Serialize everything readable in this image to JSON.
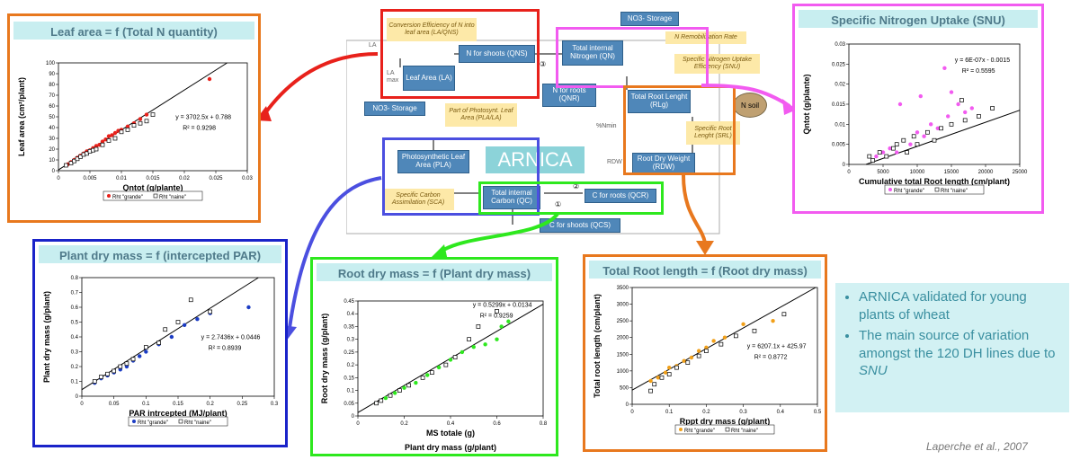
{
  "colors": {
    "red": "#e8211b",
    "orange": "#e8781e",
    "magenta": "#f25bf0",
    "blue": "#4b4fe0",
    "navy": "#1a23c9",
    "green": "#2ee81e",
    "dblue": "#1b3cc4",
    "orange_pt": "#f1a01a"
  },
  "diagram": {
    "la": "LA",
    "la_max": "LA max",
    "leaf_area": "Leaf Area (LA)",
    "n_shoots": "N for shoots (QNS)",
    "conv_eff": "Conversion Efficiency of N into leaf area (LA/QNS)",
    "total_n": "Total internal Nitrogen (QN)",
    "n_remob": "N Remobilization Rate",
    "no3_storage_top": "NO3- Storage",
    "no3_storage_left": "NO3- Storage",
    "spec_n_uptake": "Specific Nitrogen Uptake Efficiency (SNU)",
    "n_roots": "N for roots (QNR)",
    "total_root_len": "Total Root Lenght (RLg)",
    "n_soil": "N soil",
    "part_photo": "Part of Photosynt. Leaf Area (PLA/LA)",
    "pct_nmin": "%Nmin",
    "spec_root_len": "Specific Root Lenght (SRL)",
    "photo_leaf": "Photosynthetic Leaf Area (PLA)",
    "arnica": "ARNICA",
    "rdw": "RDW",
    "root_dry_weight": "Root Dry Weight (RDW)",
    "spec_carbon": "Specific Carbon Assimilation (SCA)",
    "total_carbon": "Total internal Carbon (QC)",
    "c_roots": "C for roots (QCR)",
    "c_shoots": "C for shoots (QCS)",
    "num1": "①",
    "num2": "②",
    "num_alt": "③"
  },
  "bullets": [
    "ARNICA validated for young plants of wheat",
    "The main source of variation amongst the 120 DH lines due to SNU"
  ],
  "bullet2_pre": "The main source of variation amongst the 120 DH lines due to ",
  "bullet2_em": "SNU",
  "bullet1": "ARNICA validated for young plants of wheat",
  "citation": "Laperche et al., 2007",
  "legend_grande": "Rht \"grande\"",
  "legend_naine": "Rht \"naine\"",
  "chart_data": [
    {
      "id": "leaf",
      "type": "scatter",
      "title": "Leaf area = f (Total N quantity)",
      "xlabel": "Qntot (g/plante)",
      "ylabel": "Leaf area (cm²/plant)",
      "xlim": [
        0,
        0.03
      ],
      "ylim": [
        0,
        100
      ],
      "xticks": [
        "0",
        "0.005",
        "0.01",
        "0.015",
        "0.02",
        "0.025",
        "0.03"
      ],
      "yticks": [
        "0",
        "10",
        "20",
        "30",
        "40",
        "50",
        "60",
        "70",
        "80",
        "90",
        "100"
      ],
      "equation": "y = 3702.5x + 0.788",
      "r2": "R² = 0.9298",
      "slope": 3702.5,
      "intercept": 0.788,
      "series": [
        {
          "name": "Rht \"grande\"",
          "marker": "filled",
          "color": "#e8211b",
          "x": [
            0.0015,
            0.002,
            0.0025,
            0.003,
            0.0035,
            0.004,
            0.0045,
            0.005,
            0.0055,
            0.006,
            0.0065,
            0.007,
            0.0075,
            0.008,
            0.0085,
            0.009,
            0.0095,
            0.01,
            0.011,
            0.012,
            0.013,
            0.014,
            0.024
          ],
          "y": [
            6,
            8,
            10,
            12,
            14,
            16,
            18,
            19,
            21,
            23,
            24,
            27,
            29,
            32,
            33,
            35,
            37,
            38,
            41,
            44,
            48,
            52,
            85
          ]
        },
        {
          "name": "Rht \"naine\"",
          "marker": "open",
          "color": "#000000",
          "x": [
            0.0012,
            0.002,
            0.0025,
            0.003,
            0.0035,
            0.004,
            0.0045,
            0.005,
            0.0055,
            0.006,
            0.007,
            0.008,
            0.009,
            0.01,
            0.011,
            0.012,
            0.013,
            0.014,
            0.015
          ],
          "y": [
            5,
            7,
            9,
            11,
            13,
            15,
            16,
            18,
            19,
            20,
            24,
            28,
            30,
            36,
            38,
            42,
            44,
            46,
            52
          ]
        }
      ]
    },
    {
      "id": "snu",
      "type": "scatter",
      "title": "Specific Nitrogen Uptake (SNU)",
      "xlabel": "Cumulative total Root length (cm/plant)",
      "ylabel": "Qntot (g/plante)",
      "xlim": [
        0,
        25000
      ],
      "ylim": [
        0,
        0.03
      ],
      "xticks": [
        "0",
        "5000",
        "10000",
        "15000",
        "20000",
        "25000"
      ],
      "yticks": [
        "0",
        "0.005",
        "0.01",
        "0.015",
        "0.02",
        "0.025",
        "0.03"
      ],
      "equation": "y = 6E-07x - 0.0015",
      "r2": "R² = 0.5595",
      "slope": 6e-07,
      "intercept": -0.0015,
      "series": [
        {
          "name": "Rht \"grande\"",
          "marker": "filled",
          "color": "#f25bf0",
          "x": [
            4000,
            5000,
            6000,
            7000,
            8000,
            9000,
            10000,
            11000,
            12000,
            13000,
            14000,
            14500,
            15000,
            16000,
            17000,
            18000,
            7500,
            10500
          ],
          "y": [
            0.002,
            0.003,
            0.004,
            0.003,
            0.006,
            0.005,
            0.008,
            0.007,
            0.01,
            0.009,
            0.024,
            0.012,
            0.018,
            0.015,
            0.013,
            0.014,
            0.015,
            0.017
          ]
        },
        {
          "name": "Rht \"naine\"",
          "marker": "open",
          "color": "#000000",
          "x": [
            3000,
            3500,
            4500,
            5500,
            6500,
            7000,
            8000,
            8500,
            9500,
            10000,
            11500,
            12500,
            13500,
            15000,
            16500,
            17000,
            19000,
            21000
          ],
          "y": [
            0.002,
            0.001,
            0.003,
            0.002,
            0.004,
            0.005,
            0.006,
            0.003,
            0.007,
            0.005,
            0.008,
            0.006,
            0.009,
            0.01,
            0.016,
            0.011,
            0.012,
            0.014
          ]
        }
      ]
    },
    {
      "id": "pdm",
      "type": "scatter",
      "title": "Plant dry mass = f (intercepted PAR)",
      "xlabel": "PAR intrcepted (MJ/plant)",
      "ylabel": "Plant dry mass (g/plant)",
      "xlim": [
        0,
        0.3
      ],
      "ylim": [
        0,
        0.8
      ],
      "xticks": [
        "0",
        "0.05",
        "0.1",
        "0.15",
        "0.2",
        "0.25",
        "0.3"
      ],
      "yticks": [
        "0",
        "0.1",
        "0.2",
        "0.3",
        "0.4",
        "0.5",
        "0.6",
        "0.7",
        "0.8"
      ],
      "equation": "y = 2.7436x + 0.0446",
      "r2": "R² = 0.8939",
      "slope": 2.7436,
      "intercept": 0.0446,
      "series": [
        {
          "name": "Rht \"grande\"",
          "marker": "filled",
          "color": "#1b3cc4",
          "x": [
            0.02,
            0.03,
            0.04,
            0.05,
            0.06,
            0.07,
            0.08,
            0.09,
            0.1,
            0.12,
            0.14,
            0.16,
            0.18,
            0.2,
            0.26
          ],
          "y": [
            0.09,
            0.12,
            0.14,
            0.16,
            0.18,
            0.2,
            0.24,
            0.27,
            0.3,
            0.35,
            0.4,
            0.48,
            0.52,
            0.56,
            0.6
          ]
        },
        {
          "name": "Rht \"naine\"",
          "marker": "open",
          "color": "#000000",
          "x": [
            0.02,
            0.03,
            0.04,
            0.05,
            0.06,
            0.07,
            0.08,
            0.1,
            0.12,
            0.13,
            0.15,
            0.17,
            0.2
          ],
          "y": [
            0.1,
            0.13,
            0.15,
            0.17,
            0.2,
            0.22,
            0.25,
            0.33,
            0.36,
            0.45,
            0.5,
            0.65,
            0.57
          ]
        }
      ]
    },
    {
      "id": "rdm",
      "type": "scatter",
      "title": "Root dry mass = f (Plant dry mass)",
      "xlabel": "MS totale (g)",
      "ylabel": "Root dry mass (g/plant)",
      "caption": "Plant dry mass (g/plant)",
      "xlim": [
        0,
        0.8
      ],
      "ylim": [
        0,
        0.45
      ],
      "xticks": [
        "0",
        "0.2",
        "0.4",
        "0.6",
        "0.8"
      ],
      "yticks": [
        "0",
        "0.05",
        "0.1",
        "0.15",
        "0.2",
        "0.25",
        "0.3",
        "0.35",
        "0.4",
        "0.45"
      ],
      "equation": "y = 0.5299x + 0.0134",
      "r2": "R² = 0.9259",
      "slope": 0.5299,
      "intercept": 0.0134,
      "series": [
        {
          "name": "Rht \"grande\"",
          "marker": "filled",
          "color": "#2ee81e",
          "x": [
            0.08,
            0.12,
            0.16,
            0.2,
            0.25,
            0.3,
            0.35,
            0.4,
            0.45,
            0.5,
            0.55,
            0.6,
            0.62,
            0.65
          ],
          "y": [
            0.05,
            0.07,
            0.09,
            0.11,
            0.13,
            0.16,
            0.19,
            0.22,
            0.25,
            0.27,
            0.28,
            0.3,
            0.35,
            0.37
          ]
        },
        {
          "name": "Rht \"naine\"",
          "marker": "open",
          "color": "#000000",
          "x": [
            0.08,
            0.1,
            0.14,
            0.18,
            0.22,
            0.28,
            0.32,
            0.38,
            0.42,
            0.48,
            0.52,
            0.6
          ],
          "y": [
            0.05,
            0.06,
            0.08,
            0.1,
            0.12,
            0.15,
            0.17,
            0.2,
            0.23,
            0.3,
            0.35,
            0.41
          ]
        }
      ]
    },
    {
      "id": "trl",
      "type": "scatter",
      "title": "Total Root length = f (Root dry mass)",
      "xlabel": "Rppt dry mass (g/plant)",
      "ylabel": "Total root length (cm/plant)",
      "xlim": [
        0,
        0.5
      ],
      "ylim": [
        0,
        3500
      ],
      "xticks": [
        "0",
        "0.1",
        "0.2",
        "0.3",
        "0.4",
        "0.5"
      ],
      "yticks": [
        "0",
        "500",
        "1000",
        "1500",
        "2000",
        "2500",
        "3000",
        "3500"
      ],
      "equation": "y = 6207.1x + 425.97",
      "r2": "R² = 0.8772",
      "slope": 6207.1,
      "intercept": 425.97,
      "series": [
        {
          "name": "Rht \"grande\"",
          "marker": "filled",
          "color": "#f1a01a",
          "x": [
            0.05,
            0.07,
            0.09,
            0.1,
            0.12,
            0.14,
            0.16,
            0.18,
            0.2,
            0.22,
            0.25,
            0.3,
            0.38
          ],
          "y": [
            700,
            800,
            950,
            1100,
            1150,
            1300,
            1400,
            1600,
            1700,
            1900,
            2000,
            2400,
            2500
          ]
        },
        {
          "name": "Rht \"naine\"",
          "marker": "open",
          "color": "#000000",
          "x": [
            0.05,
            0.06,
            0.08,
            0.1,
            0.12,
            0.15,
            0.18,
            0.2,
            0.24,
            0.28,
            0.33,
            0.41
          ],
          "y": [
            400,
            600,
            800,
            900,
            1100,
            1250,
            1450,
            1600,
            1800,
            2050,
            2200,
            2700
          ]
        }
      ]
    }
  ]
}
